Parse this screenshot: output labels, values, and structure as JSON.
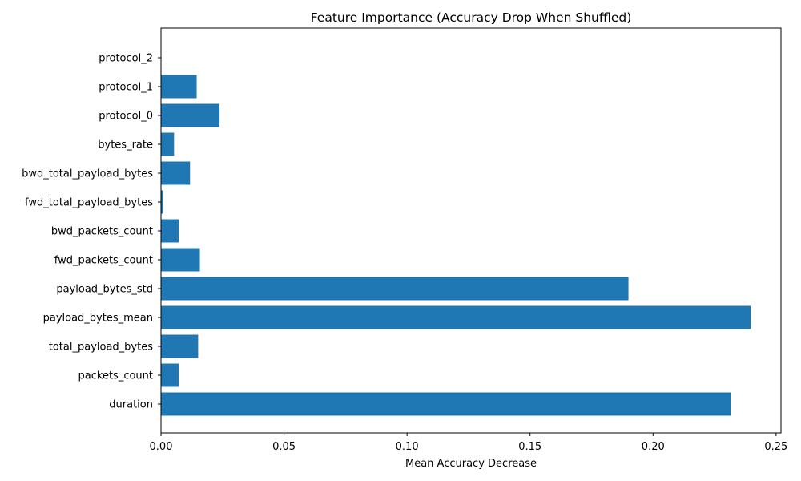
{
  "chart_data": {
    "type": "bar",
    "orientation": "horizontal",
    "title": "Feature Importance (Accuracy Drop When Shuffled)",
    "xlabel": "Mean Accuracy Decrease",
    "ylabel": "",
    "xlim": [
      0,
      0.252
    ],
    "grid": false,
    "bar_color": "#1f77b4",
    "categories": [
      "duration",
      "packets_count",
      "total_payload_bytes",
      "payload_bytes_mean",
      "payload_bytes_std",
      "fwd_packets_count",
      "bwd_packets_count",
      "fwd_total_payload_bytes",
      "bwd_total_payload_bytes",
      "bytes_rate",
      "protocol_0",
      "protocol_1",
      "protocol_2"
    ],
    "values": [
      0.2315,
      0.0072,
      0.0151,
      0.2397,
      0.19,
      0.0158,
      0.0072,
      0.0009,
      0.0118,
      0.0053,
      0.0238,
      0.0145,
      0.0
    ],
    "x_ticks": [
      0.0,
      0.05,
      0.1,
      0.15,
      0.2,
      0.25
    ],
    "x_tick_labels": [
      "0.00",
      "0.05",
      "0.10",
      "0.15",
      "0.20",
      "0.25"
    ]
  }
}
